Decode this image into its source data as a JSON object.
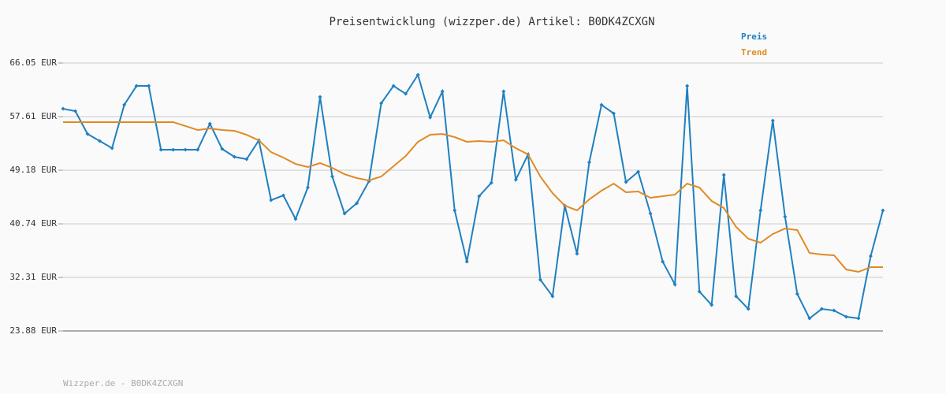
{
  "chart_data": {
    "type": "line",
    "title": "Preisentwicklung (wizzper.de) Artikel: B0DK4ZCXGN",
    "footer": "Wizzper.de - B0DK4ZCXGN",
    "categories": [
      null,
      null,
      null,
      null,
      null,
      null,
      null,
      null,
      null,
      null,
      null,
      null,
      null,
      null,
      null,
      null,
      null,
      null,
      null,
      null,
      null,
      null,
      null,
      null,
      null,
      null,
      null,
      null,
      null,
      null,
      null,
      null,
      null,
      null,
      null,
      null,
      null,
      null,
      null,
      null,
      null,
      null,
      null,
      null,
      null,
      null,
      null,
      null,
      null,
      null,
      null,
      null,
      null,
      null,
      null,
      null,
      null,
      null,
      null,
      null,
      null,
      null,
      null,
      null,
      null,
      null,
      null,
      null
    ],
    "series": [
      {
        "name": "Preis",
        "color": "#1f80c0",
        "markers": true,
        "values": [
          58.85,
          58.48,
          54.89,
          53.77,
          52.65,
          59.47,
          62.45,
          62.45,
          52.41,
          52.41,
          52.41,
          52.41,
          56.5,
          52.53,
          51.29,
          50.92,
          53.89,
          44.47,
          45.21,
          41.49,
          46.45,
          60.72,
          48.19,
          42.36,
          43.97,
          47.44,
          59.72,
          62.45,
          61.21,
          64.19,
          57.49,
          61.58,
          42.86,
          34.79,
          45.09,
          47.2,
          61.58,
          47.69,
          51.66,
          31.94,
          29.34,
          43.6,
          36.03,
          50.42,
          59.47,
          58.11,
          47.32,
          48.93,
          42.36,
          34.79,
          31.2,
          62.45,
          30.08,
          27.97,
          48.44,
          29.34,
          27.35,
          42.86,
          56.99,
          41.86,
          29.71,
          25.86,
          27.35,
          27.1,
          26.11,
          25.86,
          35.66,
          42.86
        ]
      },
      {
        "name": "Trend",
        "color": "#e08a25",
        "markers": false,
        "values": [
          56.75,
          56.75,
          56.75,
          56.75,
          56.75,
          56.75,
          56.75,
          56.75,
          56.75,
          56.75,
          56.13,
          55.51,
          55.75,
          55.51,
          55.38,
          54.76,
          53.89,
          52.03,
          51.17,
          50.17,
          49.68,
          50.3,
          49.55,
          48.56,
          47.94,
          47.57,
          48.19,
          49.8,
          51.41,
          53.65,
          54.76,
          54.89,
          54.39,
          53.65,
          53.77,
          53.65,
          53.89,
          52.65,
          51.66,
          48.19,
          45.58,
          43.6,
          42.86,
          44.59,
          45.96,
          47.07,
          45.71,
          45.83,
          44.84,
          45.09,
          45.34,
          47.07,
          46.45,
          44.34,
          43.23,
          40.25,
          38.39,
          37.77,
          39.14,
          40.0,
          39.76,
          36.16,
          35.91,
          35.79,
          33.55,
          33.18,
          33.93,
          33.93
        ]
      }
    ],
    "ylim": [
      23.88,
      66.05
    ],
    "yticks": [
      {
        "value": 23.88,
        "label": "23.88 EUR"
      },
      {
        "value": 32.31,
        "label": "32.31 EUR"
      },
      {
        "value": 40.74,
        "label": "40.74 EUR"
      },
      {
        "value": 49.18,
        "label": "49.18 EUR"
      },
      {
        "value": 57.61,
        "label": "57.61 EUR"
      },
      {
        "value": 66.05,
        "label": "66.05 EUR"
      }
    ],
    "grid": true
  }
}
